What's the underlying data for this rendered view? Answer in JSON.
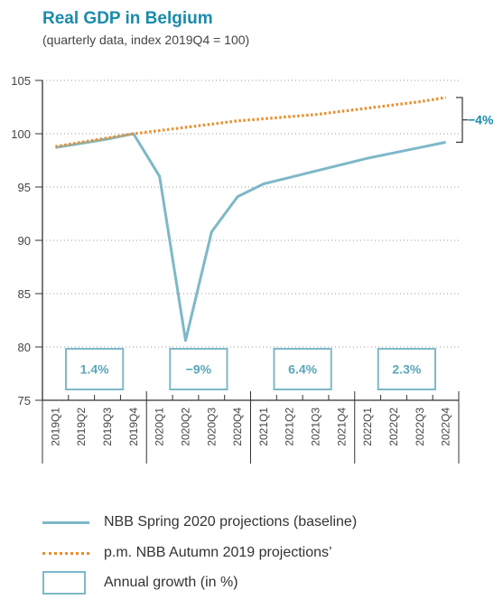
{
  "chart_data": {
    "type": "line",
    "title": "Real GDP in Belgium",
    "subtitle": "(quarterly data, index 2019Q4 = 100)",
    "categories": [
      "2019Q1",
      "2019Q2",
      "2019Q3",
      "2019Q4",
      "2020Q1",
      "2020Q2",
      "2020Q3",
      "2020Q4",
      "2021Q1",
      "2021Q2",
      "2021Q3",
      "2021Q4",
      "2022Q1",
      "2022Q2",
      "2022Q3",
      "2022Q4"
    ],
    "y_ticks": [
      "105",
      "100",
      "95",
      "90",
      "85",
      "80",
      "75"
    ],
    "ylim": [
      75,
      105
    ],
    "grid": "dotted horizontal",
    "series": [
      {
        "name": "NBB Spring 2020 projections (baseline)",
        "style": "solid",
        "color": "#7eb8c9",
        "values": [
          98.7,
          99.1,
          99.5,
          100.0,
          96.0,
          80.6,
          90.8,
          94.1,
          95.3,
          95.9,
          96.5,
          97.1,
          97.7,
          98.2,
          98.7,
          99.2
        ]
      },
      {
        "name": "p.m. NBB Autumn 2019 projections’",
        "style": "dotted",
        "color": "#e8902f",
        "values": [
          98.8,
          99.2,
          99.6,
          100.0,
          100.3,
          100.6,
          100.9,
          101.2,
          101.4,
          101.6,
          101.8,
          102.1,
          102.4,
          102.7,
          103.0,
          103.4
        ]
      }
    ],
    "annual_growth": [
      {
        "label": "1.4%",
        "value": 1.4,
        "year": "2019"
      },
      {
        "label": "−9%",
        "value": -9,
        "year": "2020"
      },
      {
        "label": "6.4%",
        "value": 6.4,
        "year": "2021"
      },
      {
        "label": "2.3%",
        "value": 2.3,
        "year": "2022"
      }
    ],
    "annotation": {
      "label": "−4%",
      "value": -4
    },
    "legend": [
      {
        "label": "NBB Spring 2020 projections (baseline)",
        "swatch": "line"
      },
      {
        "label": "p.m. NBB Autumn 2019 projections’",
        "swatch": "dots"
      },
      {
        "label": "Annual growth (in %)",
        "swatch": "box"
      }
    ],
    "colors": {
      "accent": "#1a8bab",
      "baseline": "#7eb8c9",
      "autumn": "#e8902f"
    }
  }
}
